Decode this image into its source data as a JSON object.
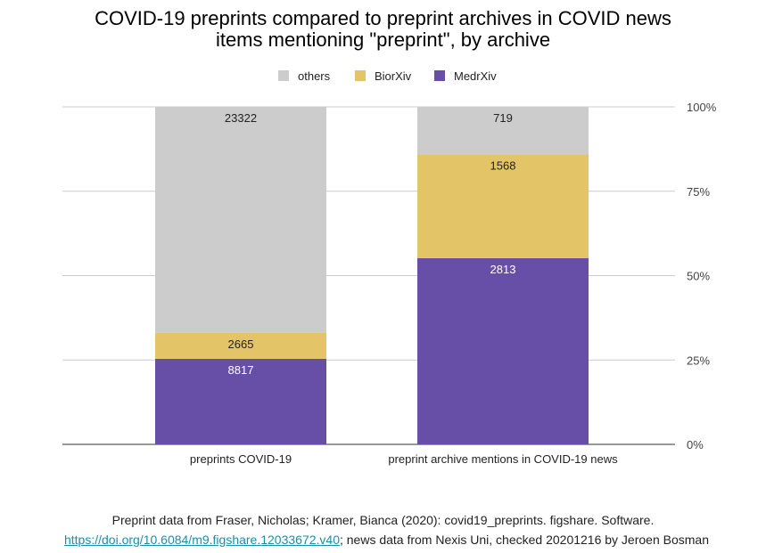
{
  "chart_data": {
    "type": "bar",
    "stacked": true,
    "normalized": true,
    "title_lines": [
      "COVID-19 preprints compared to preprint archives in COVID news",
      "items mentioning \"preprint\", by archive"
    ],
    "categories": [
      "preprints COVID-19",
      "preprint archive mentions in COVID-19 news"
    ],
    "series": [
      {
        "name": "MedrXiv",
        "values": [
          8817,
          2813
        ],
        "color": "#674ea7",
        "label_color": "#ffffff"
      },
      {
        "name": "BiorXiv",
        "values": [
          2665,
          1568
        ],
        "color": "#e3c567",
        "label_color": "#222222"
      },
      {
        "name": "others",
        "values": [
          23322,
          719
        ],
        "color": "#cccccc",
        "label_color": "#222222"
      }
    ],
    "legend_order": [
      "others",
      "BiorXiv",
      "MedrXiv"
    ],
    "yticks": [
      "0%",
      "25%",
      "50%",
      "75%",
      "100%"
    ],
    "ylim": [
      0,
      100
    ],
    "y_axis_side": "right",
    "grid": true,
    "legend_position": "top"
  },
  "footer": {
    "line1": "Preprint data from  Fraser, Nicholas; Kramer, Bianca (2020): covid19_preprints. figshare. Software.",
    "link_text": "https://doi.org/10.6084/m9.figshare.12033672.v40",
    "line2_rest": "; news data from Nexis Uni, checked 20201216 by Jeroen Bosman"
  }
}
